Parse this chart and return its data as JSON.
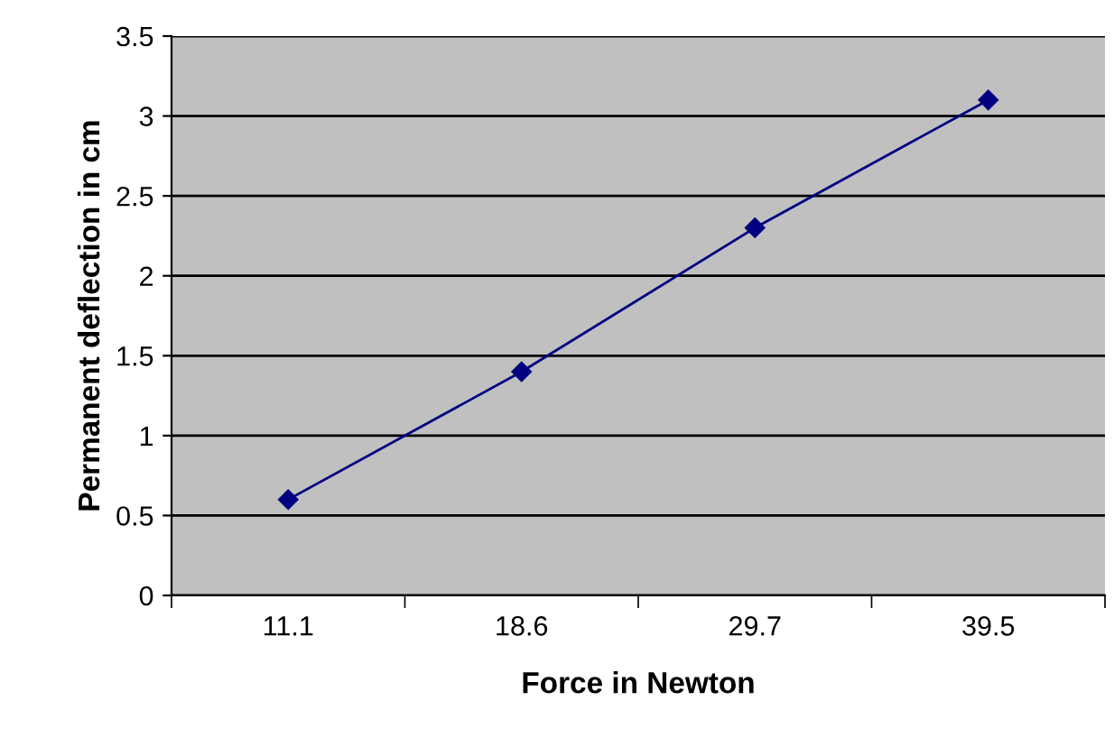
{
  "chart_data": {
    "type": "line",
    "xlabel": "Force in Newton",
    "ylabel": "Permanent deflection in cm",
    "categories": [
      "11.1",
      "18.6",
      "29.7",
      "39.5"
    ],
    "series": [
      {
        "color": "#000080",
        "values": [
          0.6,
          1.4,
          2.3,
          3.1
        ]
      }
    ],
    "ylim": [
      0,
      3.5
    ],
    "yticks": [
      0,
      0.5,
      1,
      1.5,
      2,
      2.5,
      3,
      3.5
    ],
    "grid": "y",
    "marker": "diamond",
    "line_style": "solid",
    "legend": false
  }
}
